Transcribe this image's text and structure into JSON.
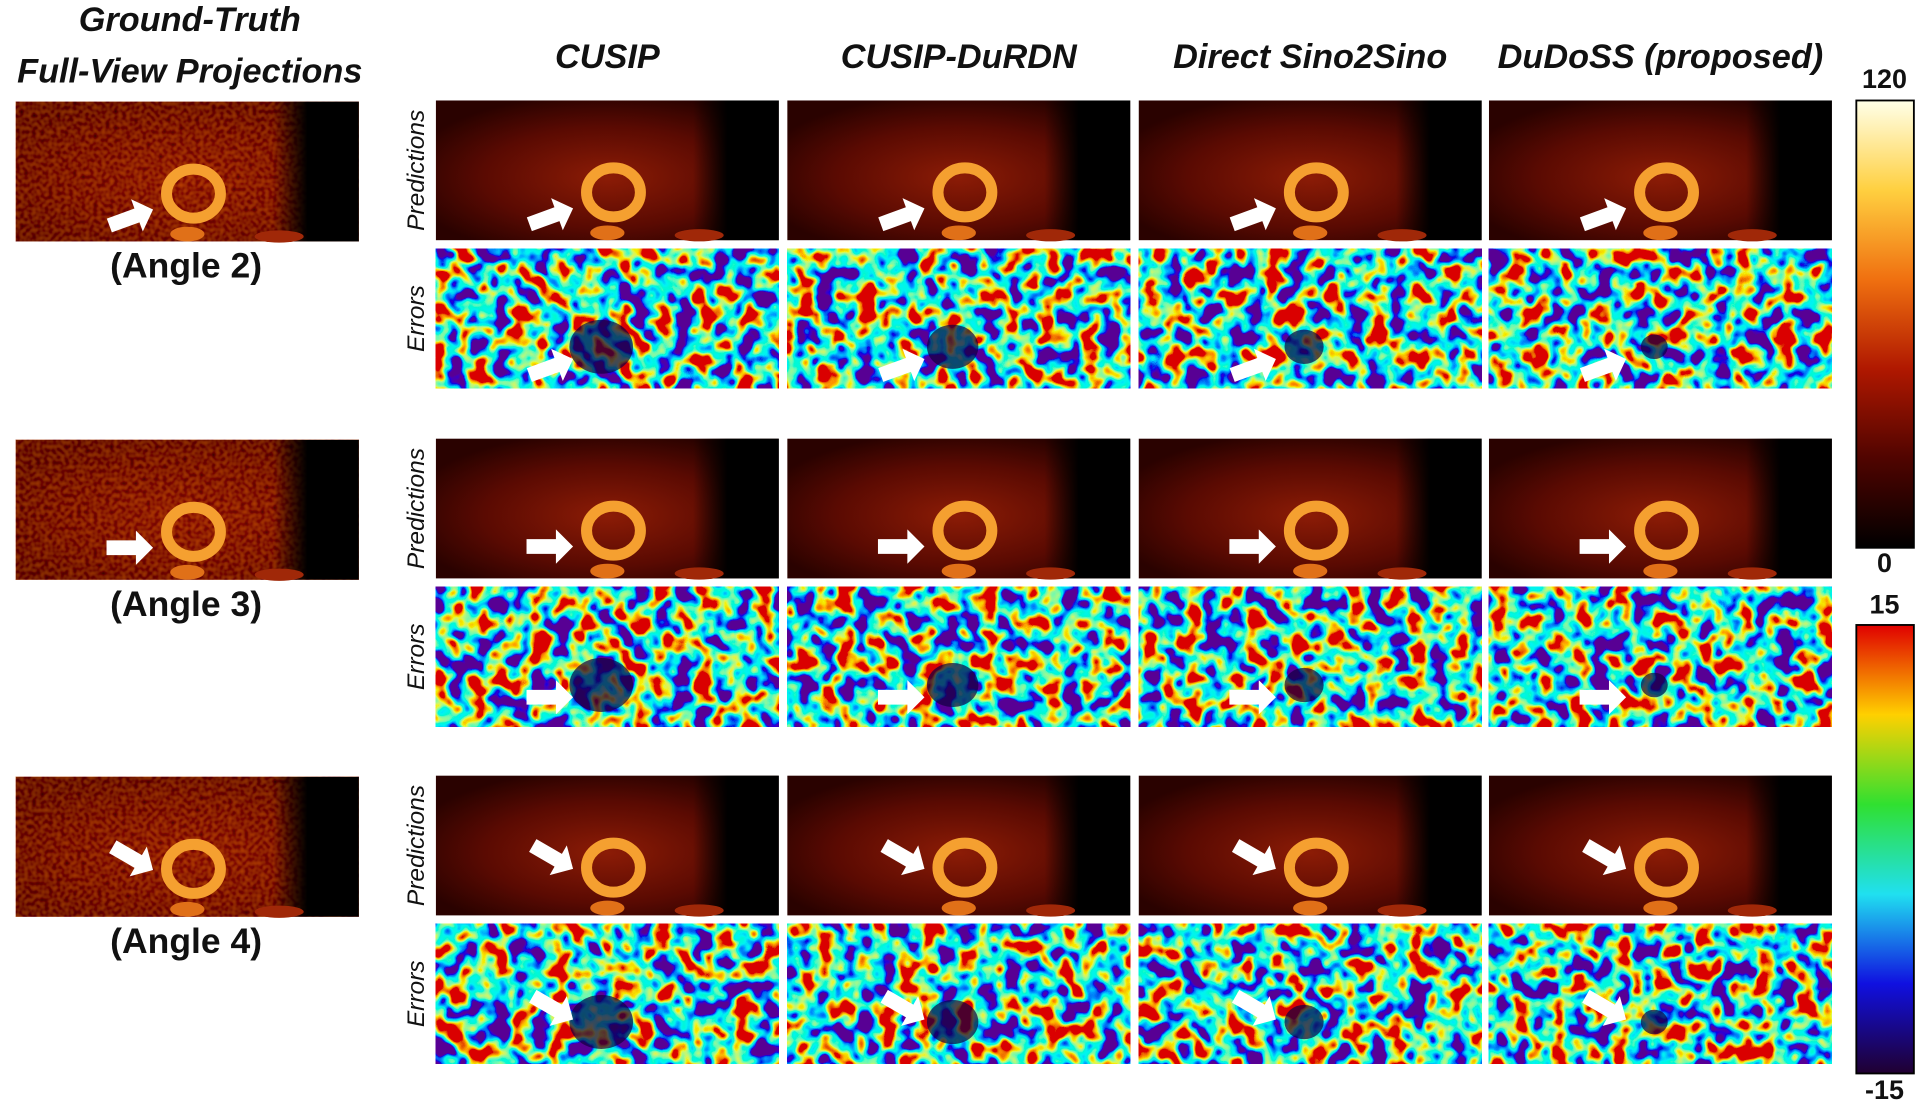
{
  "header": {
    "title_lines": [
      "Ground-Truth",
      "Full-View Projections"
    ]
  },
  "columns": [
    "CUSIP",
    "CUSIP-DuRDN",
    "Direct Sino2Sino",
    "DuDoSS (proposed)"
  ],
  "rows": [
    {
      "label": "(Angle 2)",
      "prediction_label": "Predictions",
      "error_label": "Errors"
    },
    {
      "label": "(Angle 3)",
      "prediction_label": "Predictions",
      "error_label": "Errors"
    },
    {
      "label": "(Angle 4)",
      "prediction_label": "Predictions",
      "error_label": "Errors"
    }
  ],
  "colorbars": [
    {
      "max": 120,
      "min": 0
    },
    {
      "max": 15,
      "min": -15
    }
  ]
}
